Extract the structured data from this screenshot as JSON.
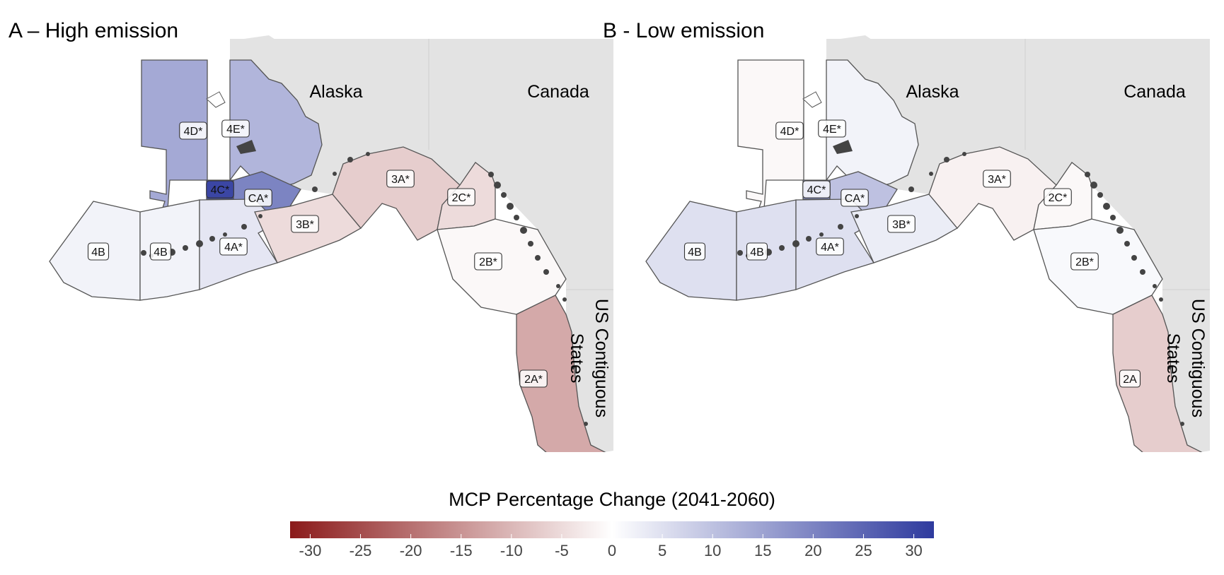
{
  "figure": {
    "panels": [
      {
        "title": "A – High emission",
        "countries": {
          "alaska": "Alaska",
          "canada": "Canada",
          "us": [
            "US Contiguous",
            "States"
          ]
        },
        "zones": [
          {
            "id": "4D",
            "label": "4D*",
            "value": 14
          },
          {
            "id": "4E",
            "label": "4E*",
            "value": 12
          },
          {
            "id": "4C",
            "label": "4C*",
            "value": 30
          },
          {
            "id": "CA",
            "label": "CA*",
            "value": 20
          },
          {
            "id": "4B_west",
            "label": "4B",
            "value": 2
          },
          {
            "id": "4B_east",
            "label": "4B",
            "value": 2
          },
          {
            "id": "4A",
            "label": "4A*",
            "value": 4
          },
          {
            "id": "3B",
            "label": "3B*",
            "value": -5
          },
          {
            "id": "3A",
            "label": "3A*",
            "value": -7
          },
          {
            "id": "2C",
            "label": "2C*",
            "value": -5
          },
          {
            "id": "2B",
            "label": "2B*",
            "value": -1
          },
          {
            "id": "2A",
            "label": "2A*",
            "value": -12
          }
        ]
      },
      {
        "title": "B - Low emission",
        "countries": {
          "alaska": "Alaska",
          "canada": "Canada",
          "us": [
            "US Contiguous",
            "States"
          ]
        },
        "zones": [
          {
            "id": "4D",
            "label": "4D*",
            "value": -1
          },
          {
            "id": "4E",
            "label": "4E*",
            "value": 2
          },
          {
            "id": "4C",
            "label": "4C*",
            "value": 18
          },
          {
            "id": "CA",
            "label": "CA*",
            "value": 10
          },
          {
            "id": "4B_west",
            "label": "4B",
            "value": 5
          },
          {
            "id": "4B_east",
            "label": "4B",
            "value": 5
          },
          {
            "id": "4A",
            "label": "4A*",
            "value": 5
          },
          {
            "id": "3B",
            "label": "3B*",
            "value": 3
          },
          {
            "id": "3A",
            "label": "3A*",
            "value": -2
          },
          {
            "id": "2C",
            "label": "2C*",
            "value": -1
          },
          {
            "id": "2B",
            "label": "2B*",
            "value": 1
          },
          {
            "id": "2A",
            "label": "2A",
            "value": -7
          }
        ]
      }
    ],
    "legend": {
      "title": "MCP Percentage Change (2041-2060)",
      "min": -32,
      "max": 32,
      "ticks": [
        -30,
        -25,
        -20,
        -15,
        -10,
        -5,
        0,
        5,
        10,
        15,
        20,
        25,
        30
      ],
      "tick_labels": [
        "-30",
        "-25",
        "-20",
        "-15",
        "-10",
        "-5",
        "0",
        "5",
        "10",
        "15",
        "20",
        "25",
        "30"
      ],
      "colors": {
        "negative": "#8b1a1a",
        "mid": "#ffffff",
        "positive": "#2e3a9e"
      }
    },
    "colors": {
      "land": "#e3e3e3",
      "outline": "#555555",
      "coast": "#444444"
    }
  }
}
